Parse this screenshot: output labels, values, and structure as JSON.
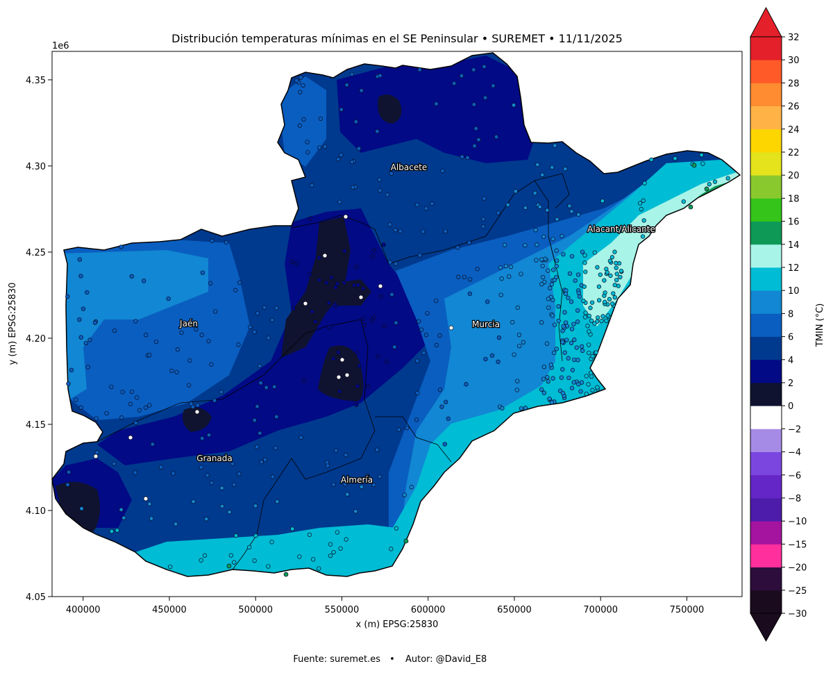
{
  "title": "Distribución temperaturas mínimas en el SE Peninsular • SUREMET • 11/11/2025",
  "x_axis": {
    "label": "x (m) EPSG:25830",
    "ticks": [
      "400000",
      "450000",
      "500000",
      "550000",
      "600000",
      "650000",
      "700000",
      "750000"
    ]
  },
  "y_axis": {
    "label": "y (m) EPSG:25830",
    "offset": "1e6",
    "ticks": [
      "4.05",
      "4.10",
      "4.15",
      "4.20",
      "4.25",
      "4.30",
      "4.35"
    ]
  },
  "cities": [
    {
      "name": "Albacete"
    },
    {
      "name": "Alacant/Alicante"
    },
    {
      "name": "Jaén"
    },
    {
      "name": "Murcia"
    },
    {
      "name": "Granada"
    },
    {
      "name": "Almería"
    }
  ],
  "colorbar": {
    "label": "TMIN (°C)",
    "bounds": [
      -30,
      -25,
      -20,
      -15,
      -10,
      -8,
      -6,
      -4,
      -2,
      0,
      2,
      4,
      6,
      8,
      10,
      12,
      14,
      16,
      18,
      20,
      22,
      24,
      26,
      28,
      30,
      32
    ],
    "tick_labels": [
      "−30",
      "−25",
      "−20",
      "−15",
      "−10",
      "−8",
      "−6",
      "−4",
      "−2",
      "0",
      "2",
      "4",
      "6",
      "8",
      "10",
      "12",
      "14",
      "16",
      "18",
      "20",
      "22",
      "24",
      "26",
      "28",
      "30",
      "32"
    ],
    "colors": [
      "#1a0b1e",
      "#2d0d3c",
      "#ff2f9d",
      "#a4149f",
      "#4d1caa",
      "#6526c8",
      "#7b46e0",
      "#a68be6",
      "#ffffff",
      "#10132f",
      "#020a85",
      "#003a8e",
      "#0a5ec0",
      "#1287d3",
      "#00bcd4",
      "#a8f4e8",
      "#0e9a56",
      "#34c41a",
      "#8ac92e",
      "#e4e31c",
      "#fdd600",
      "#ffb347",
      "#ff8c30",
      "#ff5a28",
      "#e4202a"
    ]
  },
  "footer": {
    "source": "Fuente: suremet.es",
    "separator": "•",
    "author": "Autor: @David_E8"
  },
  "colors": {
    "border": "#000000",
    "tmin_0_2": "#10132f",
    "tmin_2_4": "#020a85",
    "tmin_4_6": "#003a8e",
    "tmin_6_8": "#0a5ec0",
    "tmin_8_10": "#1287d3",
    "tmin_10_12": "#00bcd4",
    "tmin_12_14": "#a8f4e8",
    "tmin_14_16": "#0e9a56"
  }
}
